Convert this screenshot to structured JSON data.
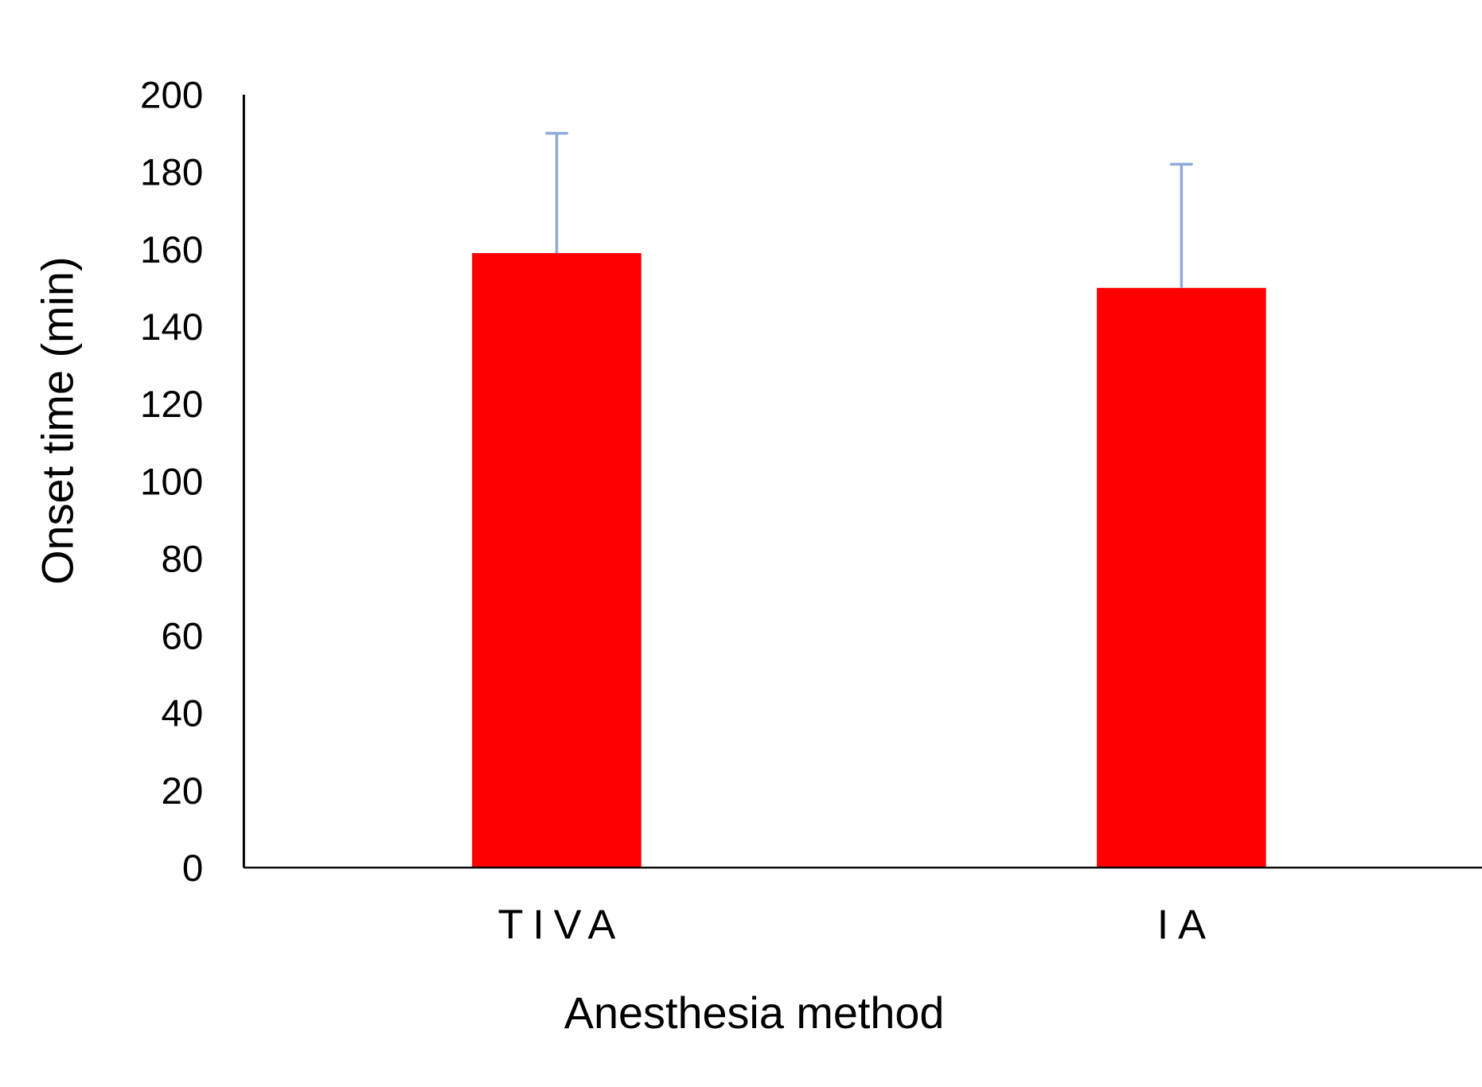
{
  "chart_data": {
    "type": "bar",
    "title": "",
    "categories": [
      "TIVA",
      "IA"
    ],
    "values": [
      159,
      150
    ],
    "error_plus": [
      31,
      32
    ],
    "xlabel": "Anesthesia method",
    "ylabel": "Onset time (min)",
    "ylim": [
      0,
      200
    ],
    "yticks": [
      "0",
      "20",
      "40",
      "60",
      "80",
      "100",
      "120",
      "140",
      "160",
      "180",
      "200"
    ],
    "grid": false,
    "legend": "none",
    "colors": {
      "bar": "#ff0000",
      "error": "#8eaadb",
      "axis": "#000000"
    }
  }
}
